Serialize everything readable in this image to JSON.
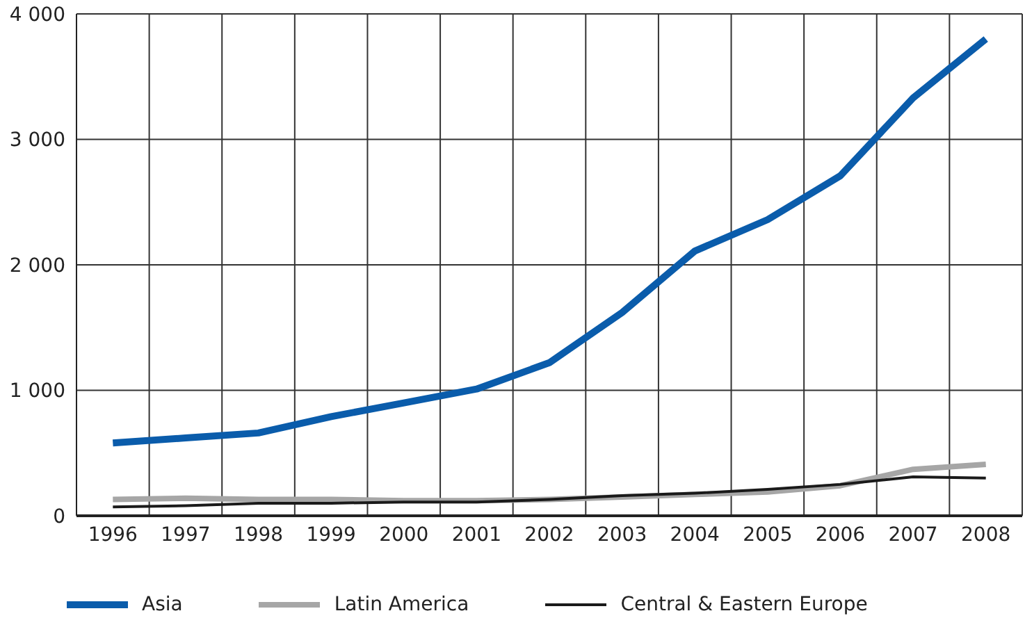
{
  "chart_data": {
    "type": "line",
    "categories": [
      "1996",
      "1997",
      "1998",
      "1999",
      "2000",
      "2001",
      "2002",
      "2003",
      "2004",
      "2005",
      "2006",
      "2007",
      "2008"
    ],
    "series": [
      {
        "name": "Asia",
        "color": "#0a5cab",
        "values": [
          580,
          620,
          660,
          790,
          900,
          1010,
          1220,
          1620,
          2110,
          2360,
          2710,
          3330,
          3800
        ]
      },
      {
        "name": "Latin America",
        "color": "#a6a6a6",
        "values": [
          130,
          140,
          130,
          130,
          120,
          120,
          130,
          150,
          170,
          190,
          240,
          370,
          410
        ]
      },
      {
        "name": "Central & Eastern Europe",
        "color": "#1a1a1a",
        "values": [
          70,
          80,
          100,
          100,
          110,
          110,
          130,
          160,
          180,
          210,
          250,
          310,
          300
        ]
      }
    ],
    "ylim": [
      0,
      4000
    ],
    "yticks": [
      0,
      {
        "value": 1000,
        "label": "1 000"
      },
      {
        "value": 2000,
        "label": "2 000"
      },
      {
        "value": 3000,
        "label": "3 000"
      },
      {
        "value": 4000,
        "label": "4 000"
      }
    ],
    "grid": true,
    "legend": "bottom",
    "marker": "none",
    "line_style": "solid"
  }
}
